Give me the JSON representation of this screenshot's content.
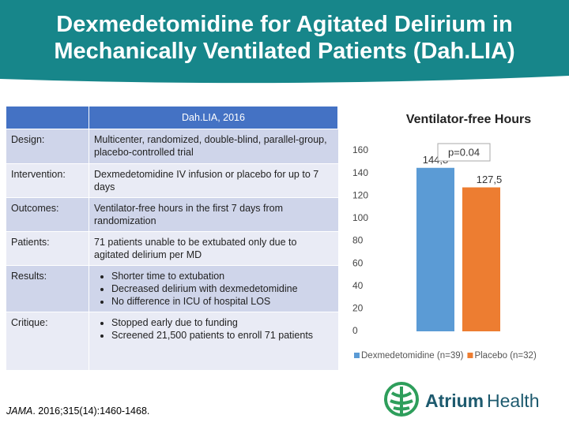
{
  "header": {
    "title": "Dexmedetomidine for Agitated Delirium in Mechanically Ventilated Patients (Dah.LIA)"
  },
  "table": {
    "heading": "Dah.LIA, 2016",
    "rows": [
      {
        "label": "Design:",
        "text": "Multicenter, randomized, double-blind, parallel-group, placebo-controlled trial"
      },
      {
        "label": "Intervention:",
        "text": "Dexmedetomidine IV infusion or placebo for up to 7 days"
      },
      {
        "label": "Outcomes:",
        "text": "Ventilator-free hours in the first 7 days from randomization"
      },
      {
        "label": "Patients:",
        "text": "71 patients unable to be extubated only due to agitated delirium per MD"
      },
      {
        "label": "Results:",
        "bullets": [
          "Shorter time to extubation",
          "Decreased delirium with dexmedetomidine",
          "No difference in ICU of hospital LOS"
        ]
      },
      {
        "label": "Critique:",
        "bullets": [
          "Stopped early due to funding",
          "Screened 21,500 patients to enroll 71 patients"
        ]
      }
    ]
  },
  "chart_data": {
    "type": "bar",
    "title": "Ventilator-free Hours",
    "categories": [
      null
    ],
    "series": [
      {
        "name": "Dexmedetomidine (n=39)",
        "color": "#5b9bd5",
        "values": [
          144.8
        ],
        "value_labels": [
          "144,8"
        ]
      },
      {
        "name": "Placebo (n=32)",
        "color": "#ed7d31",
        "values": [
          127.5
        ],
        "value_labels": [
          "127,5"
        ]
      }
    ],
    "annotation": "p=0.04",
    "ylim": [
      0,
      160
    ],
    "yticks": [
      0,
      20,
      40,
      60,
      80,
      100,
      120,
      140,
      160
    ],
    "grid": false,
    "legend": "bottom"
  },
  "citation": {
    "journal": "JAMA",
    "rest": ". 2016;315(14):1460-1468."
  },
  "logo": {
    "bold": "Atrium",
    "regular": "Health"
  }
}
